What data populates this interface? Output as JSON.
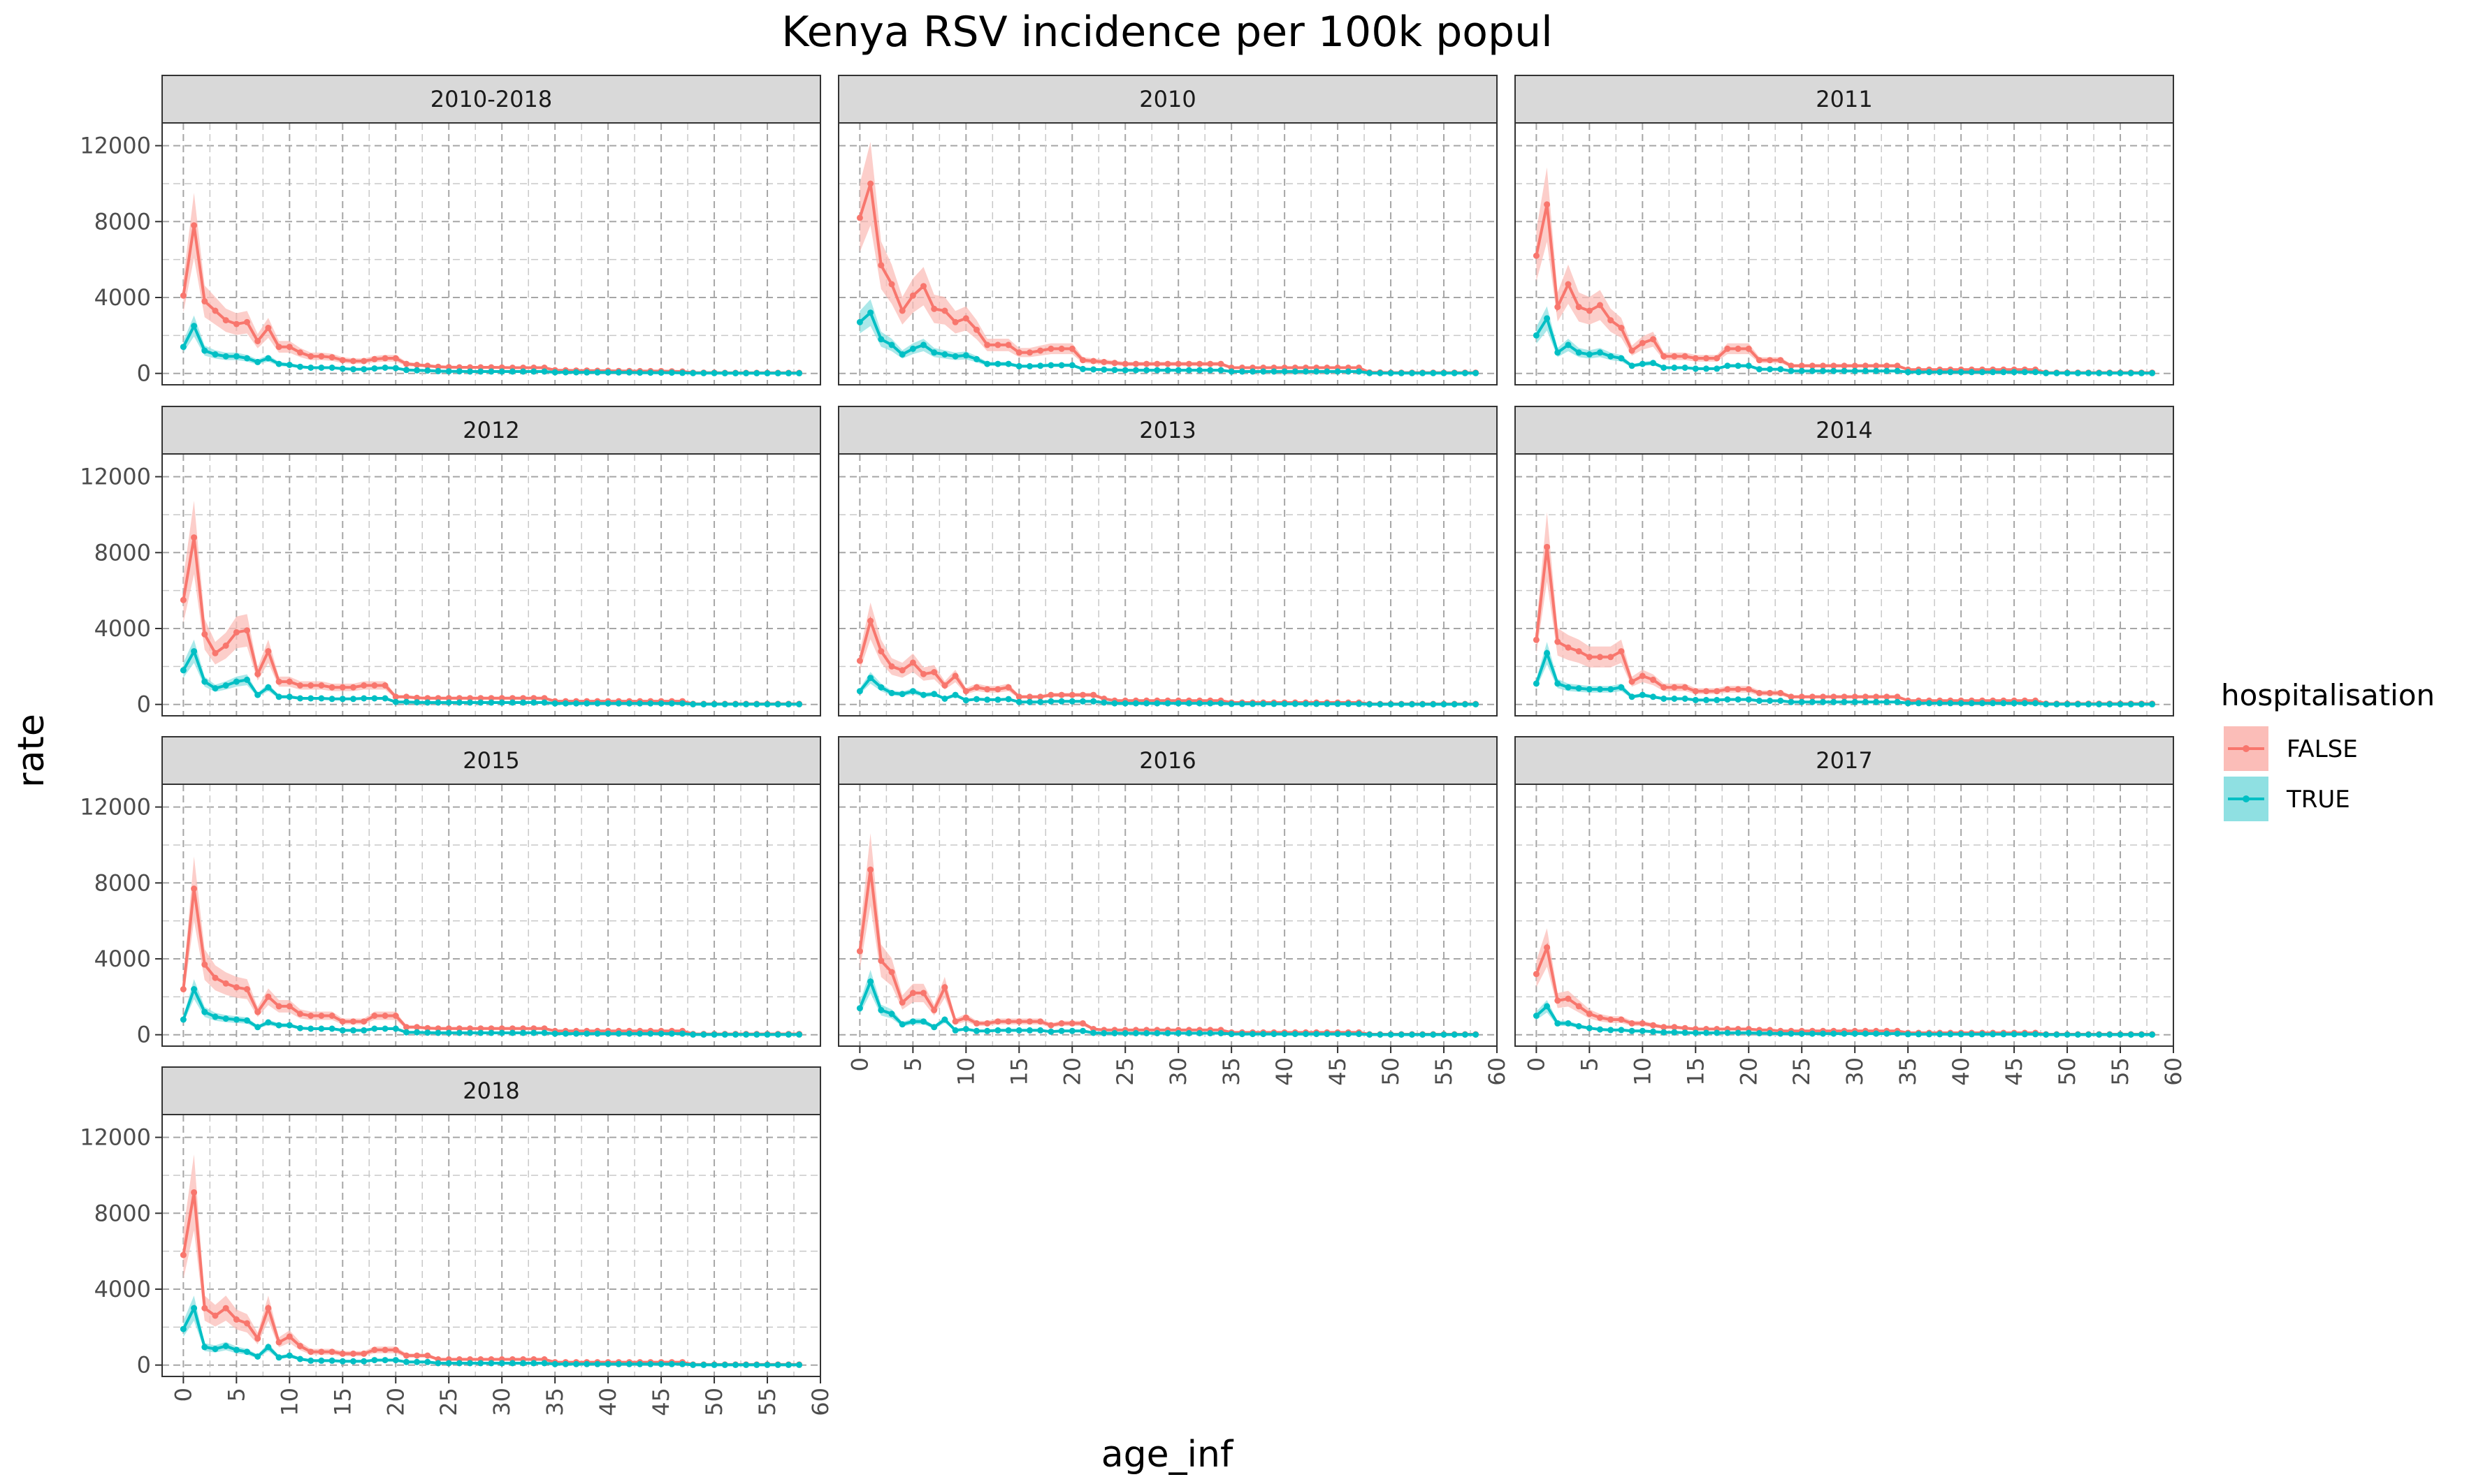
{
  "chart_data": {
    "type": "line",
    "title": "Kenya RSV incidence per 100k popul",
    "xlabel": "age_inf",
    "ylabel": "rate",
    "xlim": [
      -2,
      60
    ],
    "ylim": [
      -600,
      13200
    ],
    "x_ticks": [
      "0",
      "5",
      "10",
      "15",
      "20",
      "25",
      "30",
      "35",
      "40",
      "45",
      "50",
      "55",
      "60"
    ],
    "y_ticks": [
      "0",
      "4000",
      "8000",
      "12000"
    ],
    "grid": true,
    "legend": {
      "title": "hospitalisation",
      "position": "right",
      "entries": [
        {
          "label": "FALSE",
          "color": "#F8766D",
          "fill": "#FBBDB8"
        },
        {
          "label": "TRUE",
          "color": "#00BFC4",
          "fill": "#8FE0E2"
        }
      ]
    },
    "ci_fraction": 0.22,
    "panels": [
      {
        "label": "2010-2018",
        "row": 0,
        "col": 0,
        "false_values": [
          4100,
          7800,
          3800,
          3300,
          2800,
          2600,
          2700,
          1700,
          2400,
          1400,
          1400,
          1100,
          900,
          900,
          850,
          700,
          650,
          650,
          750,
          800,
          800,
          500,
          450,
          400,
          350,
          330,
          320,
          320,
          320,
          320,
          310,
          300,
          300,
          300,
          300,
          170,
          160,
          150,
          150,
          140,
          140,
          130,
          130,
          120,
          120,
          120,
          110,
          100,
          40,
          40,
          40,
          30,
          30,
          30,
          30,
          30,
          30,
          30,
          30
        ],
        "true_values": [
          1400,
          2500,
          1200,
          1000,
          900,
          900,
          800,
          600,
          800,
          500,
          450,
          350,
          300,
          300,
          300,
          250,
          220,
          220,
          260,
          300,
          280,
          180,
          160,
          150,
          120,
          110,
          110,
          100,
          100,
          100,
          100,
          100,
          100,
          100,
          100,
          60,
          60,
          60,
          50,
          50,
          50,
          50,
          50,
          40,
          40,
          40,
          40,
          30,
          15,
          15,
          15,
          10,
          10,
          10,
          10,
          10,
          10,
          10,
          10
        ]
      },
      {
        "label": "2010",
        "row": 0,
        "col": 1,
        "false_values": [
          8200,
          10000,
          5700,
          4700,
          3300,
          4100,
          4600,
          3400,
          3300,
          2700,
          2900,
          2300,
          1500,
          1500,
          1500,
          1100,
          1100,
          1200,
          1300,
          1300,
          1300,
          700,
          650,
          600,
          550,
          500,
          500,
          500,
          500,
          500,
          500,
          500,
          500,
          500,
          500,
          300,
          300,
          300,
          300,
          300,
          300,
          300,
          300,
          300,
          300,
          300,
          300,
          300,
          50,
          50,
          40,
          40,
          40,
          40,
          40,
          40,
          40,
          40,
          40
        ],
        "true_values": [
          2700,
          3200,
          1800,
          1500,
          1000,
          1300,
          1500,
          1100,
          1000,
          900,
          950,
          750,
          500,
          500,
          500,
          380,
          380,
          400,
          430,
          430,
          430,
          230,
          210,
          200,
          180,
          170,
          170,
          170,
          170,
          170,
          170,
          170,
          170,
          170,
          170,
          100,
          100,
          100,
          100,
          100,
          100,
          100,
          100,
          100,
          100,
          100,
          100,
          100,
          20,
          20,
          15,
          15,
          15,
          15,
          15,
          15,
          15,
          15,
          15
        ]
      },
      {
        "label": "2011",
        "row": 0,
        "col": 2,
        "false_values": [
          6200,
          8900,
          3500,
          4700,
          3500,
          3300,
          3600,
          2800,
          2400,
          1200,
          1600,
          1800,
          900,
          900,
          900,
          800,
          800,
          800,
          1300,
          1300,
          1300,
          700,
          700,
          700,
          400,
          400,
          400,
          400,
          400,
          400,
          400,
          400,
          400,
          400,
          400,
          200,
          200,
          200,
          200,
          200,
          200,
          200,
          200,
          200,
          200,
          200,
          200,
          200,
          40,
          40,
          40,
          40,
          40,
          40,
          40,
          40,
          40,
          40,
          40
        ],
        "true_values": [
          2000,
          2900,
          1100,
          1500,
          1100,
          1000,
          1100,
          900,
          800,
          400,
          500,
          550,
          300,
          300,
          300,
          250,
          250,
          250,
          400,
          400,
          400,
          220,
          220,
          220,
          130,
          130,
          130,
          130,
          130,
          130,
          130,
          130,
          130,
          130,
          130,
          70,
          70,
          70,
          70,
          70,
          70,
          70,
          70,
          70,
          70,
          70,
          70,
          70,
          15,
          15,
          15,
          15,
          15,
          15,
          15,
          15,
          15,
          15,
          15
        ]
      },
      {
        "label": "2012",
        "row": 1,
        "col": 0,
        "false_values": [
          5500,
          8800,
          3700,
          2700,
          3100,
          3800,
          3900,
          1600,
          2800,
          1200,
          1200,
          1000,
          1000,
          1000,
          900,
          900,
          900,
          1000,
          1000,
          1000,
          400,
          400,
          350,
          330,
          330,
          330,
          330,
          330,
          330,
          330,
          330,
          330,
          330,
          330,
          330,
          170,
          170,
          170,
          170,
          170,
          170,
          170,
          170,
          170,
          170,
          170,
          170,
          170,
          30,
          30,
          30,
          30,
          30,
          30,
          30,
          30,
          30,
          30,
          30
        ],
        "true_values": [
          1800,
          2800,
          1200,
          850,
          1000,
          1200,
          1300,
          500,
          900,
          400,
          400,
          320,
          320,
          320,
          290,
          290,
          290,
          320,
          320,
          320,
          130,
          130,
          110,
          100,
          100,
          100,
          100,
          100,
          100,
          100,
          100,
          100,
          100,
          100,
          100,
          55,
          55,
          55,
          55,
          55,
          55,
          55,
          55,
          55,
          55,
          55,
          55,
          55,
          10,
          10,
          10,
          10,
          10,
          10,
          10,
          10,
          10,
          10,
          10
        ]
      },
      {
        "label": "2013",
        "row": 1,
        "col": 1,
        "false_values": [
          2300,
          4400,
          2800,
          2000,
          1800,
          2200,
          1600,
          1700,
          1000,
          1500,
          700,
          900,
          800,
          800,
          900,
          400,
          400,
          400,
          500,
          500,
          500,
          500,
          500,
          300,
          200,
          200,
          200,
          200,
          200,
          200,
          200,
          200,
          200,
          200,
          200,
          100,
          100,
          100,
          100,
          100,
          100,
          100,
          100,
          100,
          100,
          100,
          100,
          100,
          25,
          25,
          25,
          25,
          25,
          25,
          25,
          25,
          25,
          25,
          25
        ],
        "true_values": [
          700,
          1400,
          900,
          600,
          550,
          700,
          500,
          550,
          300,
          500,
          220,
          280,
          250,
          250,
          280,
          130,
          130,
          130,
          160,
          160,
          160,
          160,
          160,
          100,
          60,
          60,
          60,
          60,
          60,
          60,
          60,
          60,
          60,
          60,
          60,
          30,
          30,
          30,
          30,
          30,
          30,
          30,
          30,
          30,
          30,
          30,
          30,
          30,
          8,
          8,
          8,
          8,
          8,
          8,
          8,
          8,
          8,
          8,
          8
        ]
      },
      {
        "label": "2014",
        "row": 1,
        "col": 2,
        "false_values": [
          3400,
          8300,
          3300,
          3000,
          2800,
          2500,
          2500,
          2500,
          2800,
          1200,
          1500,
          1300,
          900,
          900,
          900,
          700,
          700,
          700,
          800,
          800,
          800,
          600,
          600,
          600,
          400,
          400,
          400,
          400,
          400,
          400,
          400,
          400,
          400,
          400,
          400,
          200,
          200,
          200,
          200,
          200,
          200,
          200,
          200,
          200,
          200,
          200,
          200,
          200,
          40,
          40,
          40,
          40,
          40,
          40,
          40,
          40,
          40,
          40,
          40
        ],
        "true_values": [
          1100,
          2700,
          1100,
          900,
          850,
          800,
          800,
          800,
          900,
          400,
          500,
          400,
          300,
          300,
          300,
          230,
          230,
          230,
          260,
          260,
          260,
          190,
          190,
          190,
          130,
          130,
          130,
          130,
          130,
          130,
          130,
          130,
          130,
          130,
          130,
          65,
          65,
          65,
          65,
          65,
          65,
          65,
          65,
          65,
          65,
          65,
          65,
          65,
          12,
          12,
          12,
          12,
          12,
          12,
          12,
          12,
          12,
          12,
          12
        ]
      },
      {
        "label": "2015",
        "row": 2,
        "col": 0,
        "false_values": [
          2400,
          7700,
          3700,
          3000,
          2700,
          2500,
          2400,
          1200,
          2000,
          1500,
          1500,
          1100,
          1000,
          1000,
          1000,
          700,
          700,
          700,
          1000,
          1000,
          1000,
          400,
          400,
          350,
          330,
          330,
          330,
          330,
          330,
          330,
          330,
          330,
          330,
          330,
          330,
          200,
          200,
          200,
          200,
          200,
          200,
          200,
          200,
          200,
          200,
          200,
          200,
          200,
          40,
          40,
          40,
          40,
          40,
          40,
          40,
          40,
          40,
          40,
          40
        ],
        "true_values": [
          800,
          2400,
          1200,
          950,
          850,
          800,
          750,
          400,
          650,
          500,
          500,
          350,
          320,
          320,
          320,
          230,
          230,
          230,
          320,
          320,
          320,
          130,
          130,
          110,
          100,
          100,
          100,
          100,
          100,
          100,
          100,
          100,
          100,
          100,
          100,
          60,
          60,
          60,
          60,
          60,
          60,
          60,
          60,
          60,
          60,
          60,
          60,
          60,
          12,
          12,
          12,
          12,
          12,
          12,
          12,
          12,
          12,
          12,
          12
        ]
      },
      {
        "label": "2016",
        "row": 2,
        "col": 1,
        "false_values": [
          4400,
          8700,
          3900,
          3300,
          1700,
          2200,
          2200,
          1300,
          2500,
          700,
          900,
          600,
          600,
          700,
          700,
          700,
          700,
          700,
          500,
          600,
          600,
          600,
          300,
          250,
          250,
          250,
          250,
          250,
          250,
          250,
          250,
          250,
          250,
          250,
          250,
          120,
          120,
          120,
          120,
          120,
          120,
          120,
          120,
          120,
          120,
          120,
          120,
          120,
          25,
          25,
          25,
          25,
          25,
          25,
          25,
          25,
          25,
          25,
          25
        ],
        "true_values": [
          1400,
          2800,
          1300,
          1100,
          550,
          700,
          700,
          400,
          800,
          230,
          300,
          200,
          200,
          230,
          230,
          230,
          230,
          230,
          160,
          200,
          200,
          200,
          100,
          80,
          80,
          80,
          80,
          80,
          80,
          80,
          80,
          80,
          80,
          80,
          80,
          40,
          40,
          40,
          40,
          40,
          40,
          40,
          40,
          40,
          40,
          40,
          40,
          40,
          8,
          8,
          8,
          8,
          8,
          8,
          8,
          8,
          8,
          8,
          8
        ]
      },
      {
        "label": "2017",
        "row": 2,
        "col": 2,
        "false_values": [
          3200,
          4600,
          1800,
          1900,
          1500,
          1100,
          900,
          800,
          800,
          600,
          600,
          500,
          400,
          400,
          350,
          300,
          300,
          300,
          300,
          300,
          300,
          250,
          250,
          200,
          200,
          200,
          200,
          200,
          200,
          200,
          200,
          200,
          200,
          200,
          200,
          100,
          100,
          100,
          100,
          100,
          100,
          100,
          100,
          100,
          100,
          100,
          100,
          100,
          25,
          25,
          25,
          25,
          25,
          25,
          25,
          25,
          25,
          25,
          25
        ],
        "true_values": [
          1000,
          1500,
          600,
          600,
          450,
          350,
          280,
          250,
          250,
          200,
          200,
          160,
          130,
          130,
          110,
          100,
          100,
          100,
          100,
          100,
          100,
          80,
          80,
          60,
          60,
          60,
          60,
          60,
          60,
          60,
          60,
          60,
          60,
          60,
          60,
          30,
          30,
          30,
          30,
          30,
          30,
          30,
          30,
          30,
          30,
          30,
          30,
          30,
          8,
          8,
          8,
          8,
          8,
          8,
          8,
          8,
          8,
          8,
          8
        ]
      },
      {
        "label": "2018",
        "row": 3,
        "col": 0,
        "false_values": [
          5800,
          9100,
          3000,
          2600,
          3000,
          2400,
          2200,
          1400,
          3000,
          1200,
          1500,
          1000,
          700,
          700,
          700,
          600,
          600,
          600,
          800,
          800,
          800,
          500,
          500,
          500,
          300,
          300,
          300,
          300,
          300,
          300,
          300,
          300,
          300,
          300,
          300,
          150,
          150,
          150,
          150,
          150,
          150,
          150,
          150,
          150,
          150,
          150,
          150,
          150,
          30,
          30,
          30,
          30,
          30,
          30,
          30,
          30,
          30,
          30,
          30
        ],
        "true_values": [
          1900,
          3000,
          950,
          850,
          1000,
          800,
          700,
          450,
          950,
          400,
          500,
          320,
          230,
          230,
          230,
          200,
          200,
          200,
          260,
          260,
          260,
          160,
          160,
          160,
          100,
          100,
          100,
          100,
          100,
          100,
          100,
          100,
          100,
          100,
          100,
          50,
          50,
          50,
          50,
          50,
          50,
          50,
          50,
          50,
          50,
          50,
          50,
          50,
          10,
          10,
          10,
          10,
          10,
          10,
          10,
          10,
          10,
          10,
          10
        ]
      }
    ]
  }
}
